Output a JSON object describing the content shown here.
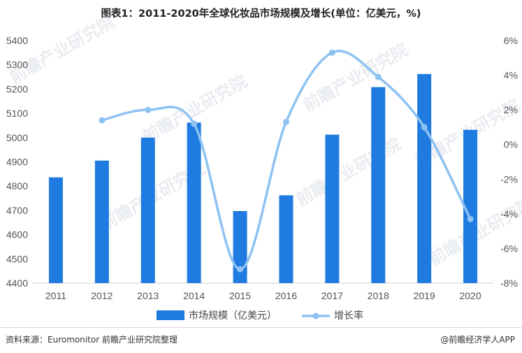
{
  "title": "图表1：2011-2020年全球化妆品市场规模及增长(单位：亿美元，%)",
  "source": "资料来源：Euromonitor 前瞻产业研究院整理",
  "brand": "@前瞻经济学人APP",
  "watermark": "前瞻产业研究院",
  "colors": {
    "bar": "#1f7bdf",
    "line": "#8ec2f2"
  },
  "chart_data": {
    "type": "bar",
    "categories": [
      "2011",
      "2012",
      "2013",
      "2014",
      "2015",
      "2016",
      "2017",
      "2018",
      "2019",
      "2020"
    ],
    "series": [
      {
        "name": "市场规模（亿美元）",
        "type": "bar",
        "axis": "left",
        "values": [
          4836,
          4905,
          5000,
          5062,
          4697,
          4762,
          5012,
          5208,
          5262,
          5032
        ]
      },
      {
        "name": "增长率",
        "type": "line",
        "axis": "right",
        "unit": "%",
        "values": [
          null,
          1.4,
          2.0,
          1.2,
          -7.2,
          1.3,
          5.3,
          3.9,
          1.0,
          -4.3
        ]
      }
    ],
    "left_axis": {
      "ylim": [
        4400,
        5400
      ],
      "ticks": [
        "4400",
        "4500",
        "4600",
        "4700",
        "4800",
        "4900",
        "5000",
        "5100",
        "5200",
        "5300",
        "5400"
      ]
    },
    "right_axis": {
      "ylim": [
        -8,
        6
      ],
      "ticks": [
        "6%",
        "4%",
        "2%",
        "0%",
        "-2%",
        "-4%",
        "-6%",
        "-8%"
      ]
    },
    "grid": false,
    "legend_position": "bottom"
  }
}
